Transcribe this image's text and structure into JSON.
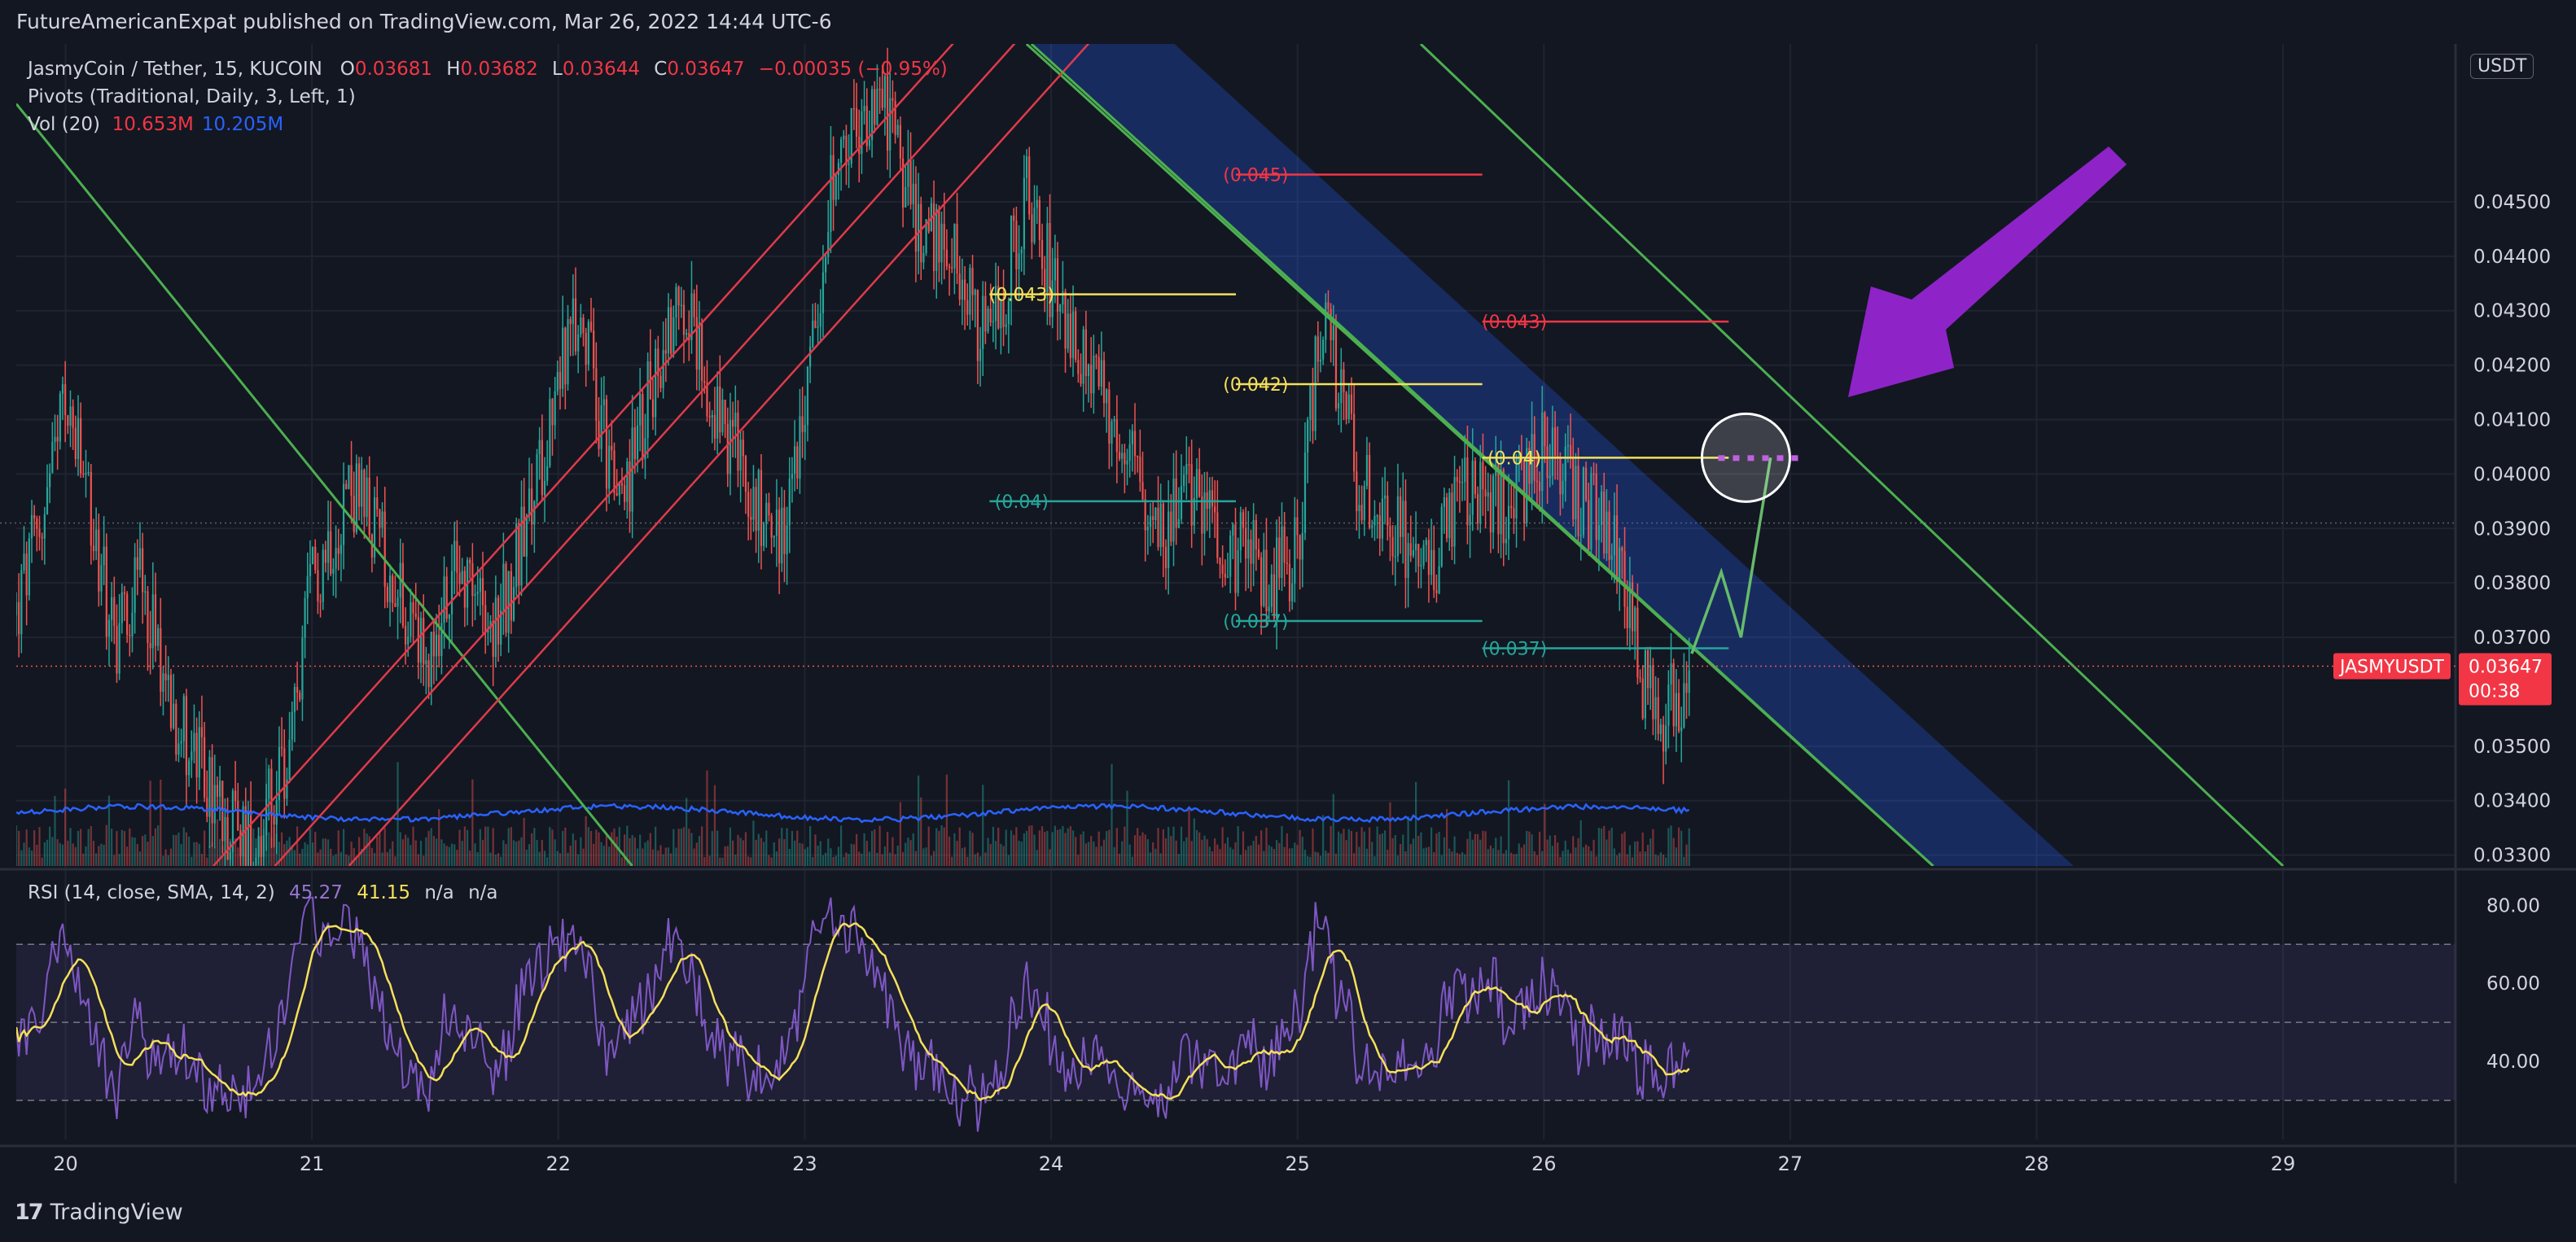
{
  "publisher": "FutureAmericanExpat published on TradingView.com, Mar 26, 2022 14:44 UTC-6",
  "brand": "TradingView",
  "currency_badge": "USDT",
  "legend": {
    "symbol": "JasmyCoin / Tether, 15, KUCOIN",
    "o_label": "O",
    "o": "0.03681",
    "h_label": "H",
    "h": "0.03682",
    "l_label": "L",
    "l": "0.03644",
    "c_label": "C",
    "c": "0.03647",
    "change": "−0.00035 (−0.95%)",
    "pivots": "Pivots (Traditional, Daily, 3, Left, 1)",
    "vol_label": "Vol (20)",
    "vol1": "10.653M",
    "vol2": "10.205M"
  },
  "rsi_legend": {
    "label": "RSI (14, close, SMA, 14, 2)",
    "rsi": "45.27",
    "sma": "41.15",
    "na1": "n/a",
    "na2": "n/a"
  },
  "price_tag": {
    "symbol": "JASMYUSDT",
    "price": "0.03647",
    "countdown": "00:38"
  },
  "colors": {
    "background": "#131722",
    "grid": "#1f2430",
    "text": "#d1d4dc",
    "up": "#26a69a",
    "down": "#ef5350",
    "rsi_line": "#7e57c2",
    "rsi_sma": "#f5e05a",
    "trend_green": "#4caf50",
    "fork_red": "#e03a4a",
    "channel_blue": "#2962ff",
    "pivot_red": "#f23645",
    "pivot_yellow": "#f5e05a",
    "pivot_teal": "#26a69a",
    "arrow_purple": "#8e24c8",
    "vol_ma": "#2962ff"
  },
  "chart_data": {
    "type": "candlestick",
    "symbol": "JASMYUSDT",
    "interval": "15",
    "exchange": "KUCOIN",
    "x_tick_labels": [
      "20",
      "21",
      "22",
      "23",
      "24",
      "25",
      "26",
      "27",
      "28",
      "29"
    ],
    "xlim": [
      19.8,
      29.7
    ],
    "y_tick_labels": [
      "0.04500",
      "0.04400",
      "0.04300",
      "0.04200",
      "0.04100",
      "0.04000",
      "0.03900",
      "0.03800",
      "0.03700",
      "0.03500",
      "0.03400",
      "0.03300"
    ],
    "y_ticks": [
      0.045,
      0.044,
      0.043,
      0.042,
      0.041,
      0.04,
      0.039,
      0.038,
      0.037,
      0.035,
      0.034,
      0.033
    ],
    "ylim": [
      0.0328,
      0.0479
    ],
    "last_price": 0.03647,
    "price_path": [
      [
        19.8,
        0.0374
      ],
      [
        19.95,
        0.04
      ],
      [
        20.0,
        0.0414
      ],
      [
        20.1,
        0.0392
      ],
      [
        20.2,
        0.037
      ],
      [
        20.3,
        0.0382
      ],
      [
        20.45,
        0.0356
      ],
      [
        20.6,
        0.034
      ],
      [
        20.75,
        0.0332
      ],
      [
        20.9,
        0.0345
      ],
      [
        21.0,
        0.038
      ],
      [
        21.15,
        0.0398
      ],
      [
        21.3,
        0.0385
      ],
      [
        21.45,
        0.0365
      ],
      [
        21.6,
        0.0384
      ],
      [
        21.75,
        0.0372
      ],
      [
        21.9,
        0.0395
      ],
      [
        22.0,
        0.042
      ],
      [
        22.1,
        0.0428
      ],
      [
        22.25,
        0.0392
      ],
      [
        22.35,
        0.0412
      ],
      [
        22.5,
        0.0435
      ],
      [
        22.6,
        0.0418
      ],
      [
        22.75,
        0.04
      ],
      [
        22.9,
        0.0388
      ],
      [
        23.0,
        0.041
      ],
      [
        23.1,
        0.045
      ],
      [
        23.3,
        0.0472
      ],
      [
        23.45,
        0.0448
      ],
      [
        23.6,
        0.044
      ],
      [
        23.75,
        0.0422
      ],
      [
        23.9,
        0.0452
      ],
      [
        24.0,
        0.0436
      ],
      [
        24.15,
        0.0418
      ],
      [
        24.3,
        0.0405
      ],
      [
        24.45,
        0.039
      ],
      [
        24.6,
        0.0396
      ],
      [
        24.75,
        0.0386
      ],
      [
        24.9,
        0.0381
      ],
      [
        25.0,
        0.0386
      ],
      [
        25.1,
        0.0431
      ],
      [
        25.25,
        0.0398
      ],
      [
        25.4,
        0.039
      ],
      [
        25.55,
        0.0384
      ],
      [
        25.7,
        0.0398
      ],
      [
        25.85,
        0.0392
      ],
      [
        26.0,
        0.0405
      ],
      [
        26.15,
        0.0395
      ],
      [
        26.3,
        0.0388
      ],
      [
        26.4,
        0.0362
      ],
      [
        26.5,
        0.0356
      ],
      [
        26.6,
        0.03647
      ]
    ],
    "candle_range": [
      19.8,
      26.6
    ],
    "projection": [
      [
        26.6,
        0.0367
      ],
      [
        26.72,
        0.0382
      ],
      [
        26.8,
        0.037
      ],
      [
        26.92,
        0.0403
      ]
    ],
    "target": {
      "x": 26.82,
      "y": 0.0403
    },
    "pivot_levels": [
      {
        "label": "(0.045)",
        "price": 0.0455,
        "x_start": 24.75,
        "x_end": 25.75,
        "label_x": 24.5,
        "color": "red"
      },
      {
        "label": "(0.043)",
        "price": 0.0428,
        "x_start": 25.75,
        "x_end": 26.75,
        "label_x": 25.55,
        "color": "red"
      },
      {
        "label": "(0.043)",
        "price": 0.0433,
        "x_start": 23.75,
        "x_end": 24.75,
        "label_x": 23.55,
        "color": "yellow"
      },
      {
        "label": "(0.042)",
        "price": 0.04165,
        "x_start": 24.75,
        "x_end": 25.75,
        "label_x": 24.5,
        "color": "yellow"
      },
      {
        "label": "(0.04)",
        "price": 0.0403,
        "x_start": 25.75,
        "x_end": 26.75,
        "label_x": 25.55,
        "color": "yellow"
      },
      {
        "label": "(0.04)",
        "price": 0.0395,
        "x_start": 23.75,
        "x_end": 24.75,
        "label_x": 23.55,
        "color": "teal"
      },
      {
        "label": "(0.037)",
        "price": 0.0373,
        "x_start": 24.75,
        "x_end": 25.75,
        "label_x": 24.5,
        "color": "teal"
      },
      {
        "label": "(0.037)",
        "price": 0.0368,
        "x_start": 25.75,
        "x_end": 26.75,
        "label_x": 25.55,
        "color": "teal"
      }
    ],
    "trend_lines": [
      {
        "color": "green",
        "from": [
          19.8,
          0.0468
        ],
        "to": [
          22.3,
          0.0328
        ]
      },
      {
        "color": "green",
        "from": [
          23.9,
          0.0479
        ],
        "to": [
          27.58,
          0.0328
        ]
      },
      {
        "color": "green",
        "from": [
          25.5,
          0.0479
        ],
        "to": [
          29.0,
          0.0328
        ]
      }
    ],
    "fork_lines": [
      {
        "from": [
          20.6,
          0.0328
        ],
        "to": [
          23.7,
          0.0484
        ]
      },
      {
        "from": [
          20.85,
          0.0328
        ],
        "to": [
          23.95,
          0.0484
        ]
      },
      {
        "from": [
          21.15,
          0.0328
        ],
        "to": [
          24.25,
          0.0484
        ]
      }
    ],
    "blue_channel": {
      "upper": [
        [
          24.5,
          0.0479
        ],
        [
          28.15,
          0.0328
        ]
      ],
      "lower": [
        [
          23.92,
          0.0479
        ],
        [
          27.58,
          0.0328
        ]
      ]
    },
    "rsi": {
      "y_tick_labels": [
        "80.00",
        "60.00",
        "40.00"
      ],
      "y_ticks": [
        80,
        60,
        40
      ],
      "ylim": [
        20,
        88
      ],
      "band": [
        30,
        70
      ],
      "mid": 50,
      "rsi_value": 45.27,
      "sma_value": 41.15
    },
    "volume": {
      "vol": 10.653,
      "vol_ma": 10.205,
      "unit": "M"
    }
  }
}
